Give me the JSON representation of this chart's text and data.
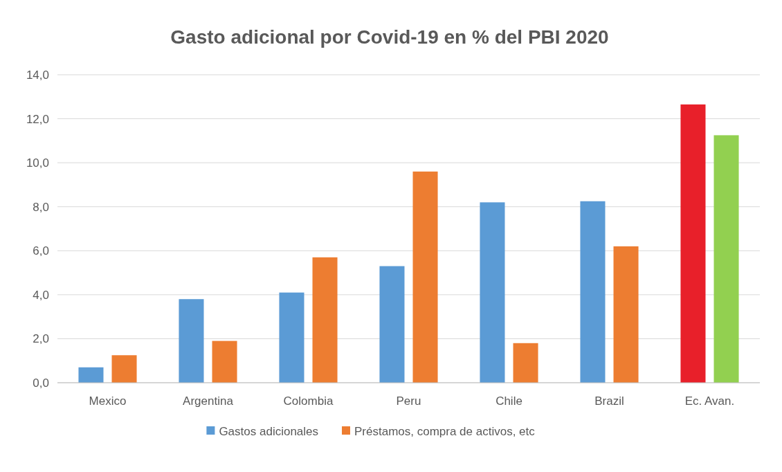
{
  "chart_data": {
    "type": "bar",
    "title": "Gasto adicional por Covid-19 en % del PBI 2020",
    "categories": [
      "Mexico",
      "Argentina",
      "Colombia",
      "Peru",
      "Chile",
      "Brazil",
      "Ec. Avan."
    ],
    "series": [
      {
        "name": "Gastos adicionales",
        "color": "#5b9bd5",
        "colors": [
          "#5b9bd5",
          "#5b9bd5",
          "#5b9bd5",
          "#5b9bd5",
          "#5b9bd5",
          "#5b9bd5",
          "#e8202a"
        ],
        "values": [
          0.7,
          3.8,
          4.1,
          5.3,
          8.2,
          8.25,
          12.65
        ]
      },
      {
        "name": "Préstamos, compra de activos, etc",
        "color": "#ed7d31",
        "colors": [
          "#ed7d31",
          "#ed7d31",
          "#ed7d31",
          "#ed7d31",
          "#ed7d31",
          "#ed7d31",
          "#92d050"
        ],
        "values": [
          1.25,
          1.9,
          5.7,
          9.6,
          1.8,
          6.2,
          11.25
        ]
      }
    ],
    "ylim": [
      0,
      14
    ],
    "yticks": [
      {
        "value": 0,
        "label": "0,0"
      },
      {
        "value": 2,
        "label": "2,0"
      },
      {
        "value": 4,
        "label": "4,0"
      },
      {
        "value": 6,
        "label": "6,0"
      },
      {
        "value": 8,
        "label": "8,0"
      },
      {
        "value": 10,
        "label": "10,0"
      },
      {
        "value": 12,
        "label": "12,0"
      },
      {
        "value": 14,
        "label": "14,0"
      }
    ],
    "grid": "y",
    "legend": "bottom"
  }
}
